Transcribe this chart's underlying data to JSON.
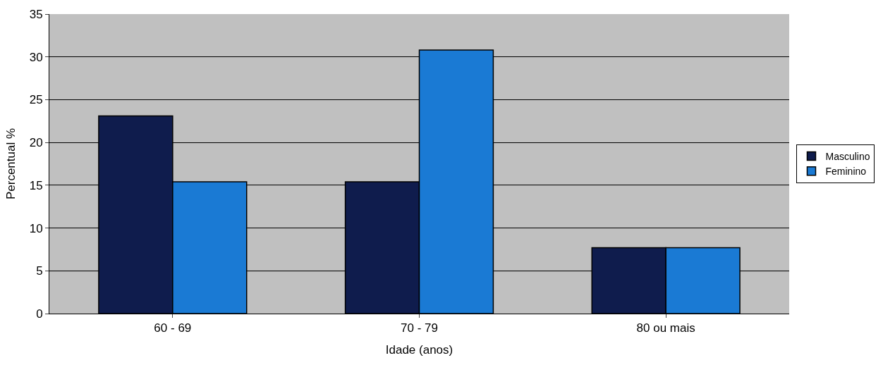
{
  "chart_data": {
    "type": "bar",
    "xlabel": "Idade (anos)",
    "ylabel": "Percentual %",
    "categories": [
      "60 - 69",
      "70 - 79",
      "80 ou mais"
    ],
    "series": [
      {
        "name": "Masculino",
        "color": "#0f1c4d",
        "values": [
          23.1,
          15.4,
          7.7
        ]
      },
      {
        "name": "Feminino",
        "color": "#1a7ad4",
        "values": [
          15.4,
          30.8,
          7.7
        ]
      }
    ],
    "ylim": [
      0,
      35
    ],
    "yticks": [
      0,
      5,
      10,
      15,
      20,
      25,
      30,
      35
    ],
    "grid": "y",
    "legend": "right"
  }
}
